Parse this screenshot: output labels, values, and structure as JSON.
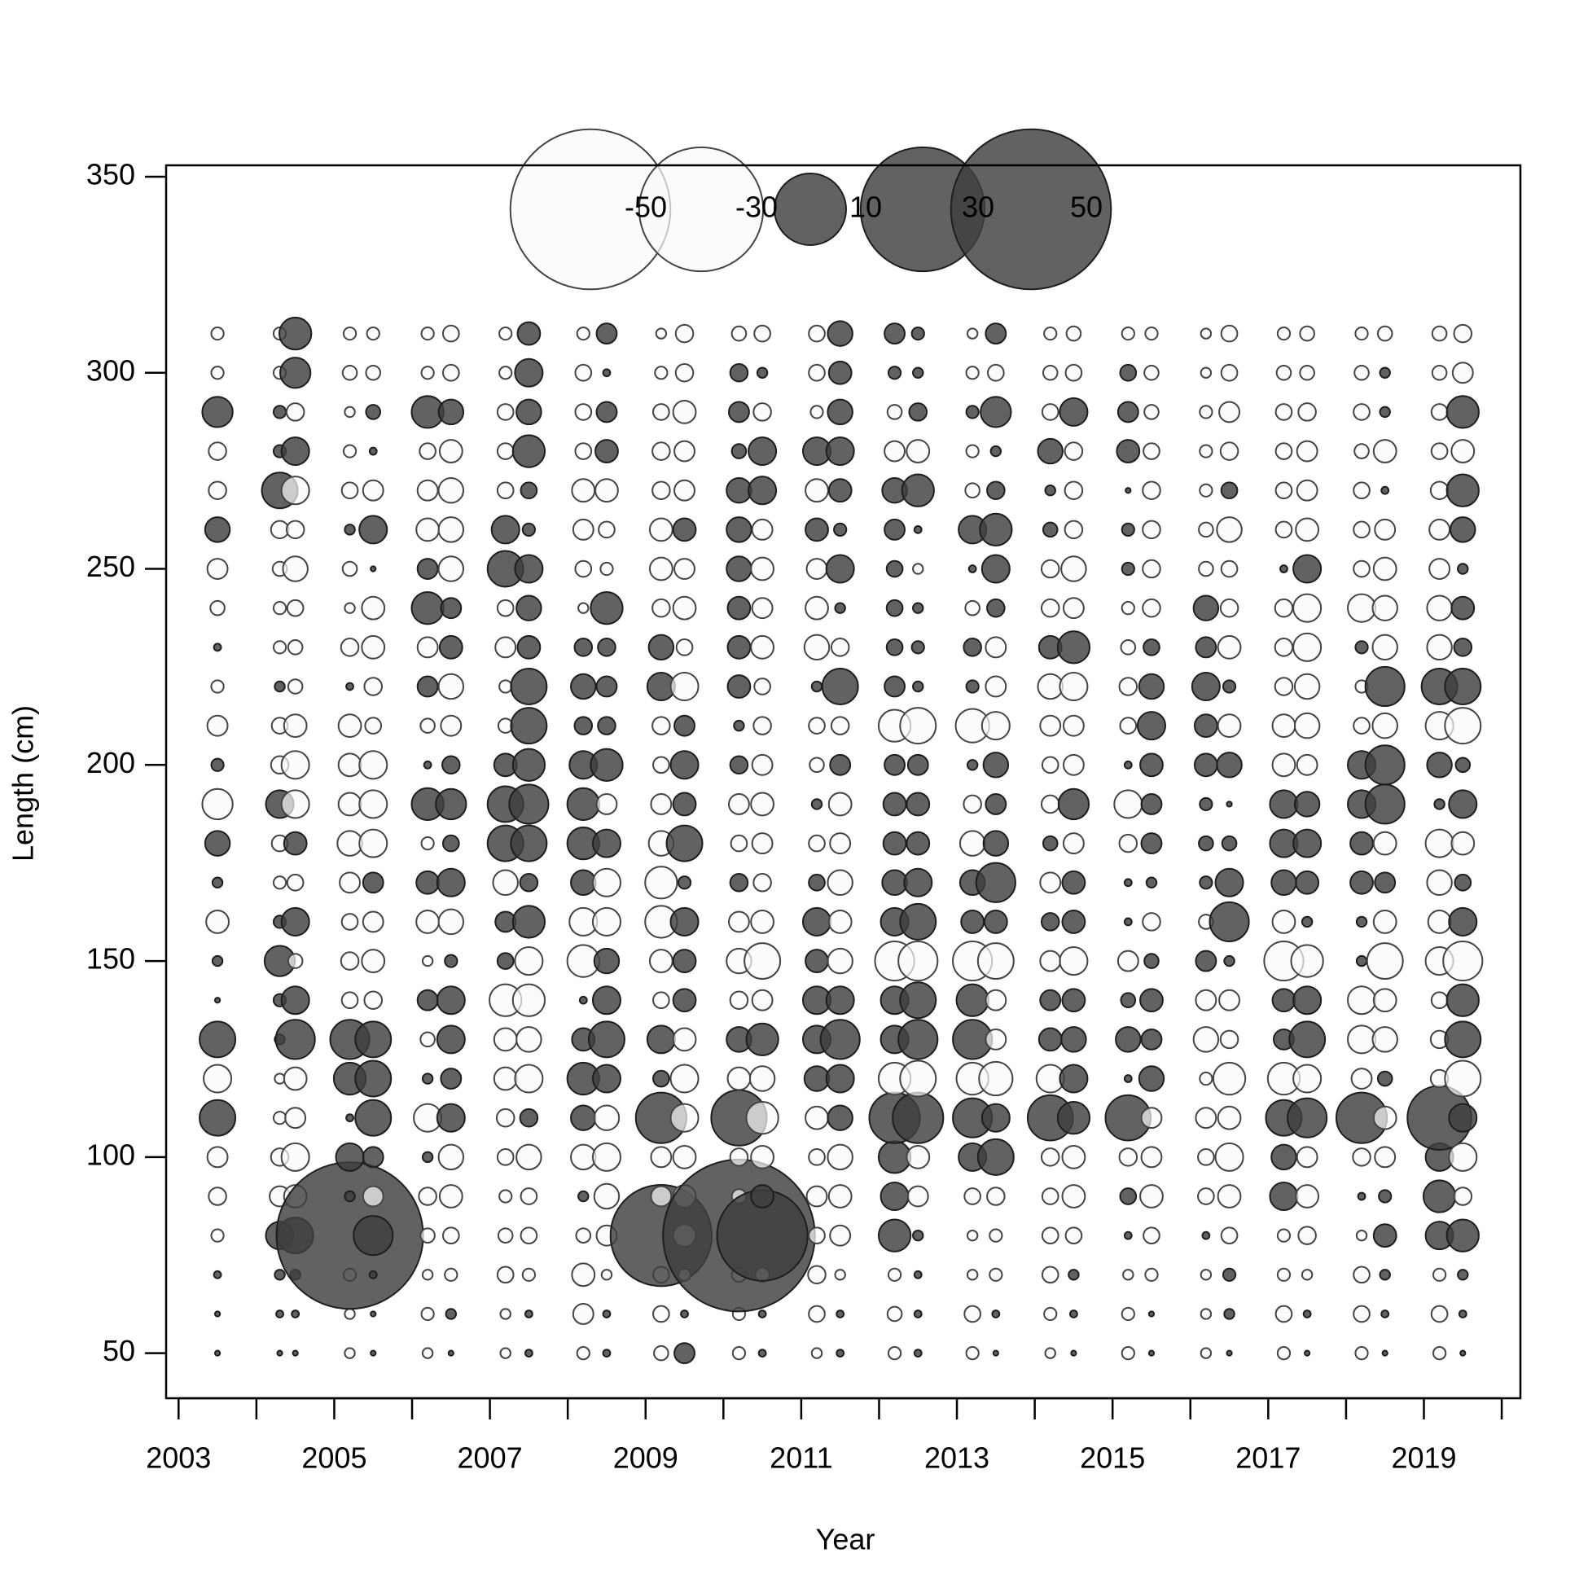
{
  "chart_data": {
    "type": "bubble",
    "xlabel": "Year",
    "ylabel": "Length (cm)",
    "xlim": [
      2002.84,
      2020.24
    ],
    "ylim": [
      38.5,
      352.9
    ],
    "xticks": [
      2003,
      2005,
      2007,
      2009,
      2011,
      2013,
      2015,
      2017,
      2019
    ],
    "xminor_ticks": [
      2004,
      2006,
      2008,
      2010,
      2012,
      2014,
      2016,
      2018,
      2020
    ],
    "yticks": [
      50,
      100,
      150,
      200,
      250,
      300,
      350
    ],
    "legend_values": [
      -50,
      -30,
      10,
      30,
      50
    ],
    "positive_color": "#404040",
    "negative_color": "#fafafa",
    "x": [
      2003.5,
      2004.3,
      2004.5,
      2005.2,
      2005.5,
      2006.2,
      2006.5,
      2007.2,
      2007.5,
      2008.2,
      2008.5,
      2009.2,
      2009.5,
      2010.2,
      2010.5,
      2011.2,
      2011.5,
      2012.2,
      2012.5,
      2013.2,
      2013.5,
      2014.2,
      2014.5,
      2015.2,
      2015.5,
      2016.2,
      2016.5,
      2017.2,
      2017.5,
      2018.2,
      2018.5,
      2019.2,
      2019.5
    ],
    "y": [
      50,
      60,
      70,
      80,
      90,
      100,
      110,
      120,
      130,
      140,
      150,
      160,
      170,
      180,
      190,
      200,
      210,
      220,
      230,
      240,
      250,
      260,
      270,
      280,
      290,
      300,
      310
    ],
    "values": [
      [
        0.05,
        0.05,
        0.1,
        -0.3,
        -0.6,
        -0.8,
        2.5,
        -1.5,
        2.5,
        0.05,
        0.2,
        -1,
        0.2,
        1.2,
        -1.8,
        0.3,
        -0.8,
        -0.3,
        0.1,
        -0.4,
        -0.8,
        1.2,
        -0.6,
        -0.6,
        1.8,
        -0.3,
        -0.3
      ],
      [
        0.05,
        0.1,
        0.2,
        1.5,
        -0.8,
        -0.6,
        -0.3,
        -0.2,
        0.2,
        0.3,
        1.8,
        0.3,
        -0.3,
        -0.5,
        1.5,
        -0.6,
        -0.5,
        0.2,
        -0.3,
        -0.3,
        -0.4,
        -0.6,
        2.5,
        0.3,
        0.3,
        -0.3,
        -0.3
      ],
      [
        0.05,
        0.1,
        0.2,
        2.5,
        -1,
        -1.5,
        -0.8,
        -1,
        3,
        1.5,
        -0.4,
        1.5,
        -0.5,
        1,
        -1.5,
        -1.5,
        -1,
        -0.4,
        -0.4,
        -0.5,
        -1.2,
        -0.6,
        -1.5,
        1.5,
        -0.6,
        1.8,
        2
      ],
      [
        -0.2,
        -0.2,
        -0.3,
        42,
        0.2,
        1.5,
        0.1,
        2,
        3,
        -0.5,
        -0.6,
        -0.5,
        -0.8,
        -1.2,
        -1,
        -1,
        -1,
        0.1,
        -0.6,
        -0.2,
        -0.4,
        0.2,
        -0.5,
        -0.3,
        -0.2,
        -0.4,
        -0.3
      ],
      [
        0.05,
        0.05,
        0.1,
        3,
        -0.8,
        0.8,
        2.5,
        2.5,
        2.5,
        -0.6,
        -1,
        -0.8,
        0.8,
        -1.5,
        -1.5,
        -1.5,
        -0.5,
        -0.6,
        -1,
        -1,
        0.05,
        1.5,
        -0.8,
        0.1,
        0.4,
        -0.4,
        -0.3
      ],
      [
        -0.2,
        -0.3,
        -0.2,
        -0.4,
        -0.6,
        0.2,
        -1.5,
        0.2,
        -0.4,
        0.8,
        -0.2,
        -1,
        1,
        -0.3,
        2,
        0.1,
        -0.4,
        0.8,
        -0.8,
        2,
        0.8,
        -1,
        -0.8,
        -0.5,
        2,
        -0.3,
        -0.3
      ],
      [
        0.05,
        0.2,
        -0.3,
        -0.5,
        -1,
        -1.2,
        1.5,
        0.8,
        1.5,
        1.5,
        0.3,
        -1.2,
        1.5,
        0.5,
        1.8,
        0.6,
        -0.8,
        -1.2,
        1,
        0.8,
        -1.2,
        -1.2,
        -1.2,
        -1,
        1.2,
        -0.5,
        -0.5
      ],
      [
        -0.2,
        -0.2,
        -0.5,
        -0.4,
        -0.3,
        -0.5,
        -0.6,
        -1,
        -1,
        -2,
        0.5,
        0.8,
        -1.2,
        2.5,
        2.5,
        1,
        -0.4,
        -0.3,
        -0.8,
        -0.5,
        2.5,
        1.5,
        -0.5,
        -0.5,
        -0.5,
        -0.3,
        -0.3
      ],
      [
        0.1,
        0.1,
        -0.3,
        -0.5,
        -0.5,
        -1.2,
        0.6,
        -1.5,
        -1.2,
        -2,
        -1.5,
        2,
        0.6,
        2.5,
        3,
        2,
        2.5,
        2.5,
        1,
        1.2,
        1.5,
        0.3,
        0.5,
        2,
        1.2,
        1.5,
        1
      ],
      [
        -0.3,
        -0.8,
        -1,
        -0.4,
        0.2,
        -1.2,
        1.2,
        2,
        1,
        0.1,
        -2,
        -1.5,
        1.2,
        2,
        2,
        1.5,
        0.6,
        1.2,
        0.6,
        -0.2,
        -0.5,
        -0.8,
        -1,
        -0.5,
        -0.5,
        -0.5,
        -0.3
      ],
      [
        0.1,
        0.1,
        -0.2,
        -0.8,
        -1.2,
        -1.5,
        -1.2,
        1.5,
        2.5,
        1.5,
        1.2,
        -1.5,
        -1.5,
        1.5,
        -0.8,
        2,
        0.6,
        0.8,
        0.6,
        2,
        -0.3,
        -0.5,
        -1,
        1,
        0.8,
        0.1,
        0.8
      ],
      [
        -0.4,
        -0.5,
        -0.5,
        20,
        -0.8,
        -0.8,
        5,
        0.5,
        1.5,
        -0.5,
        -1,
        -2,
        -2,
        -1.2,
        -0.8,
        -0.5,
        -0.6,
        1.5,
        1.2,
        -0.6,
        -1,
        -1,
        -0.6,
        -0.6,
        -0.5,
        -0.3,
        -0.2
      ],
      [
        0.8,
        0.1,
        -0.3,
        -1,
        -1,
        -1,
        -1.5,
        -1.5,
        -1,
        1,
        1,
        1.5,
        0.3,
        2.5,
        1,
        1.5,
        0.8,
        -1.5,
        -0.5,
        -1,
        -0.8,
        1,
        -0.8,
        -0.8,
        -1,
        -0.6,
        -0.6
      ],
      [
        -0.3,
        -0.3,
        -0.4,
        45,
        -0.4,
        -0.6,
        6,
        -1,
        1.2,
        -0.6,
        -1.2,
        -0.8,
        0.6,
        -0.5,
        -0.8,
        0.6,
        0.2,
        1,
        1,
        1,
        1.2,
        1.2,
        1.2,
        0.4,
        0.8,
        0.6,
        -0.4
      ],
      [
        0.1,
        0.1,
        -0.4,
        16,
        1,
        -1,
        -2,
        -1.2,
        2,
        -0.8,
        -2.5,
        -1,
        -0.6,
        -0.8,
        -1,
        -0.8,
        -0.6,
        -0.5,
        -1,
        -0.8,
        -1,
        -0.8,
        1.5,
        1.5,
        -0.6,
        0.2,
        -0.5
      ],
      [
        -0.2,
        -0.5,
        -0.6,
        -0.5,
        -0.8,
        -0.5,
        -1,
        1.2,
        1.5,
        1.5,
        1,
        1.5,
        0.5,
        -0.5,
        0.2,
        -0.4,
        -0.5,
        0.2,
        -1.2,
        -1,
        -0.8,
        1,
        -1,
        1.5,
        -0.3,
        -0.5,
        -0.5
      ],
      [
        0.1,
        0.1,
        -0.2,
        -0.8,
        -1,
        -1.2,
        1.2,
        1.5,
        3,
        1.5,
        -1.2,
        -1,
        -1.2,
        -0.8,
        -1,
        0.8,
        -0.6,
        2.5,
        -0.6,
        0.2,
        1.5,
        0.3,
        1,
        1.5,
        1.2,
        1,
        1.2
      ],
      [
        -0.3,
        -0.4,
        -0.3,
        2,
        1.5,
        2,
        5,
        -2,
        1.5,
        1.5,
        -3,
        1.5,
        1.2,
        1,
        1,
        0.8,
        -2,
        0.8,
        0.5,
        0.5,
        0.5,
        0.8,
        1.2,
        -0.8,
        -0.4,
        0.3,
        0.8
      ],
      [
        0.1,
        0.1,
        0.1,
        0.2,
        -0.8,
        -1,
        5,
        -2.5,
        3,
        2.5,
        -3,
        2.5,
        1.5,
        1,
        1,
        0.8,
        -2.5,
        0.2,
        0.3,
        0.2,
        -0.2,
        0.1,
        2,
        -1,
        0.6,
        0.2,
        0.3
      ],
      [
        -0.3,
        -0.5,
        -0.2,
        -0.2,
        -0.5,
        1.5,
        3,
        -2,
        3,
        2,
        -3,
        1,
        1.2,
        -1.2,
        -0.6,
        0.2,
        -2.2,
        0.3,
        0.6,
        -0.4,
        0.1,
        1.5,
        -0.4,
        -0.3,
        0.3,
        -0.3,
        -0.2
      ],
      [
        0.05,
        0.1,
        -0.3,
        -0.3,
        -0.6,
        2.5,
        1.5,
        -2.2,
        -0.8,
        -0.8,
        -2.5,
        1,
        3,
        1.2,
        0.8,
        1.2,
        -1.5,
        -0.8,
        -0.8,
        0.6,
        1.5,
        2,
        0.6,
        0.2,
        1.8,
        -0.5,
        0.8
      ],
      [
        -0.2,
        -0.3,
        -0.5,
        -0.5,
        -0.5,
        -0.6,
        4,
        -1.5,
        1,
        0.8,
        -0.8,
        0.6,
        -0.8,
        0.4,
        -0.6,
        -0.5,
        -0.8,
        -1.2,
        1,
        -0.6,
        -0.6,
        0.4,
        0.2,
        1.2,
        -0.5,
        -0.4,
        -0.3
      ],
      [
        0.05,
        0.1,
        0.2,
        -0.5,
        -1,
        -1,
        2,
        1.5,
        1.2,
        1,
        -1.5,
        1,
        1,
        -0.8,
        1.8,
        -0.8,
        -0.8,
        -1.5,
        2,
        -0.8,
        -1.2,
        -0.6,
        -0.6,
        -0.6,
        1.5,
        -0.5,
        -0.4
      ],
      [
        -0.3,
        -0.3,
        -0.2,
        0.1,
        0.5,
        -0.6,
        4,
        0.1,
        1.2,
        0.4,
        -0.8,
        0.1,
        0.1,
        -0.6,
        -1.5,
        0.1,
        -0.5,
        -0.6,
        -0.4,
        -0.3,
        0.3,
        0.3,
        0.05,
        1,
        0.8,
        0.5,
        -0.3
      ],
      [
        0.05,
        0.05,
        -0.3,
        -0.5,
        -1,
        -0.8,
        -0.8,
        1.2,
        0.8,
        1,
        0.4,
        -0.6,
        0.2,
        0.8,
        0.8,
        1,
        1.5,
        1.2,
        0.5,
        -0.6,
        -0.6,
        -0.6,
        -0.6,
        -0.5,
        -0.4,
        -0.4,
        -0.3
      ],
      [
        -0.2,
        -0.2,
        -0.2,
        0.1,
        -0.5,
        -0.5,
        -0.8,
        -0.3,
        -1.2,
        -0.8,
        0.8,
        -0.4,
        0.3,
        0.4,
        0.3,
        1,
        1,
        1.5,
        0.8,
        1.2,
        -0.4,
        -0.4,
        -0.3,
        -0.3,
        -0.3,
        -0.2,
        -0.2
      ],
      [
        0.05,
        0.2,
        0.3,
        -0.5,
        -1,
        -1.5,
        -1,
        -2,
        -0.6,
        -0.8,
        0.2,
        3,
        1.5,
        0.4,
        0.05,
        1.2,
        -1,
        0.3,
        -1,
        -0.6,
        -0.5,
        -1.2,
        0.5,
        -0.6,
        -0.8,
        -0.5,
        -0.5
      ],
      [
        -0.3,
        -0.5,
        -0.3,
        -0.3,
        1.5,
        1.2,
        2.5,
        -2,
        0.8,
        1,
        -3,
        -1,
        1.2,
        1.5,
        1.5,
        -1,
        -1,
        -0.6,
        -0.6,
        -0.6,
        0.1,
        -0.5,
        -0.5,
        -0.5,
        -0.5,
        -0.4,
        -0.3
      ],
      [
        0.05,
        0.1,
        -0.2,
        -0.6,
        -1,
        -0.8,
        3,
        -1.5,
        2.5,
        1.5,
        -2,
        0.2,
        1,
        1.5,
        1.2,
        -0.8,
        -1.2,
        -1.2,
        -1.5,
        -1.5,
        1.5,
        -1,
        -0.8,
        -0.8,
        -0.6,
        -0.4,
        -0.4
      ],
      [
        -0.3,
        -0.5,
        -0.5,
        -0.2,
        0.1,
        -0.6,
        5,
        -0.8,
        -1.5,
        -1.5,
        0.2,
        0.2,
        1,
        1,
        1.5,
        1.5,
        -0.5,
        -0.3,
        0.3,
        -1.5,
        -0.5,
        -0.5,
        -0.5,
        -0.4,
        -0.5,
        -0.4,
        -0.3
      ],
      [
        0.05,
        0.1,
        0.2,
        1,
        0.3,
        -0.8,
        -1,
        0.4,
        -1.2,
        -1,
        -2.5,
        -1,
        0.8,
        -1,
        3,
        3,
        -1.2,
        3,
        -1.2,
        -1.2,
        -1,
        -0.8,
        0.1,
        -1,
        0.2,
        0.2,
        -0.4
      ],
      [
        -0.3,
        -0.5,
        -0.3,
        1.5,
        2,
        1.5,
        8,
        -0.6,
        -0.6,
        -0.5,
        -1.5,
        -1,
        -1.2,
        -1.5,
        0.2,
        1.2,
        -1.5,
        2.5,
        -1.2,
        -1.2,
        -0.8,
        -0.8,
        -0.6,
        -0.5,
        -0.5,
        -0.4,
        -0.4
      ],
      [
        0.05,
        0.1,
        0.2,
        2,
        -0.6,
        -1.5,
        1.5,
        -2.5,
        2.5,
        2,
        -3,
        1.5,
        0.5,
        -1,
        1.5,
        0.4,
        -2.5,
        2.5,
        0.6,
        1,
        0.2,
        1.2,
        2,
        -1,
        2,
        -0.8,
        -0.6
      ]
    ]
  }
}
